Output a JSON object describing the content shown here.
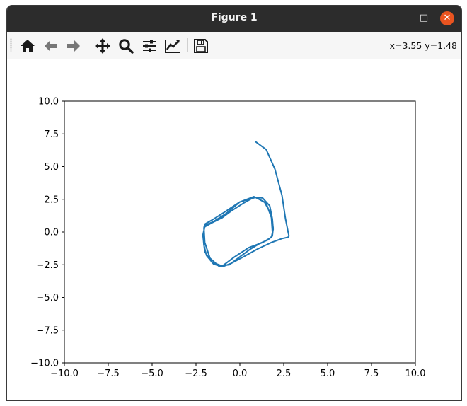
{
  "window": {
    "title": "Figure 1"
  },
  "window_controls": {
    "minimize": "–",
    "maximize": "□",
    "close": "✕"
  },
  "toolbar": {
    "icons": [
      "home-icon",
      "back-arrow-icon",
      "forward-arrow-icon",
      "pan-move-icon",
      "zoom-magnifier-icon",
      "configure-subplots-icon",
      "edit-axis-icon",
      "save-floppy-icon"
    ],
    "coords": "x=3.55 y=1.48"
  },
  "colors": {
    "line": "#1f77b4",
    "titlebar": "#2c2c2c",
    "close_button": "#e95420",
    "toolbar": "#f6f6f6"
  },
  "chart_data": {
    "type": "line",
    "title": "",
    "xlabel": "",
    "ylabel": "",
    "xlim": [
      -10,
      10
    ],
    "ylim": [
      -10,
      10
    ],
    "grid": false,
    "xticks": [
      "−10.0",
      "−7.5",
      "−5.0",
      "−2.5",
      "0.0",
      "2.5",
      "5.0",
      "7.5",
      "10.0"
    ],
    "yticks": [
      "−10.0",
      "−7.5",
      "−5.0",
      "−2.5",
      "0.0",
      "2.5",
      "5.0",
      "7.5",
      "10.0"
    ],
    "series": [
      {
        "x": [
          0.9,
          1.5,
          2.0,
          2.4,
          2.6,
          2.75,
          2.8,
          2.75,
          2.4,
          1.8,
          1.0,
          0.2,
          -0.5,
          -1.0,
          -1.5,
          -1.9,
          -2.05,
          -2.1,
          -2.0,
          -1.6,
          -1.0,
          -0.5,
          0.2,
          0.8,
          1.3,
          1.7,
          1.85,
          1.9,
          1.8,
          1.3,
          0.5,
          -0.3,
          -1.0,
          -1.6,
          -2.0,
          -2.1,
          -2.0,
          -1.5,
          -0.8,
          0.0,
          0.8,
          1.4,
          1.8,
          1.9,
          1.85,
          1.6,
          1.1,
          0.6,
          0.0,
          -0.6,
          -1.2,
          -1.7,
          -2.0,
          -2.05,
          -2.0,
          -1.6,
          -0.9,
          0.0,
          0.9,
          1.5,
          1.8,
          1.85
        ],
        "y": [
          6.9,
          6.3,
          4.8,
          2.8,
          1.0,
          0.0,
          -0.3,
          -0.4,
          -0.5,
          -0.8,
          -1.3,
          -1.9,
          -2.4,
          -2.65,
          -2.45,
          -1.8,
          -1.0,
          -0.2,
          0.4,
          0.7,
          1.1,
          1.6,
          2.2,
          2.65,
          2.6,
          2.0,
          1.0,
          0.2,
          -0.4,
          -0.8,
          -1.2,
          -1.9,
          -2.6,
          -2.3,
          -1.5,
          -0.3,
          0.5,
          0.8,
          1.4,
          2.3,
          2.7,
          2.3,
          1.3,
          0.3,
          -0.3,
          -0.6,
          -0.9,
          -1.3,
          -1.9,
          -2.5,
          -2.6,
          -2.0,
          -0.8,
          0.3,
          0.6,
          0.9,
          1.5,
          2.3,
          2.65,
          2.2,
          1.1,
          0.1
        ]
      }
    ]
  }
}
